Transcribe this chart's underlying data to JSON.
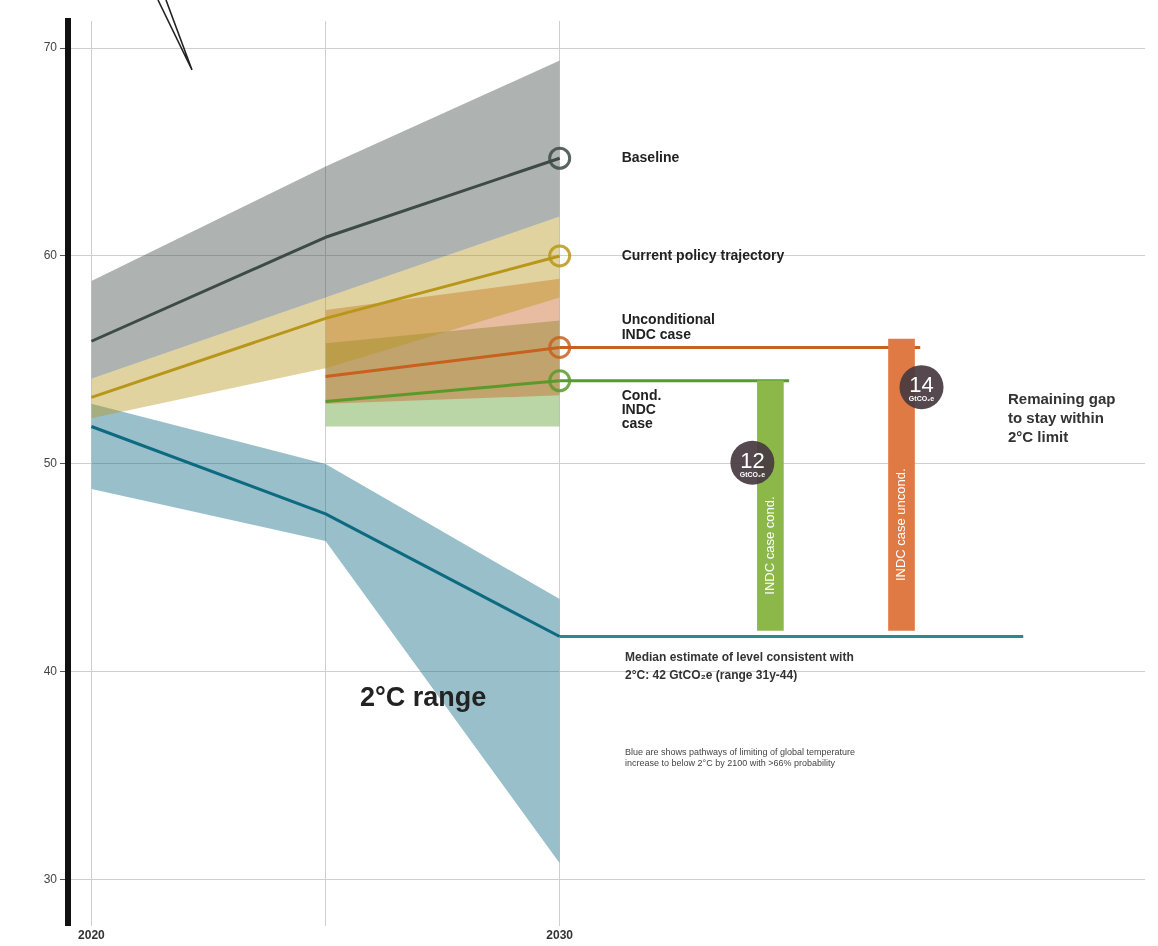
{
  "chart_data": {
    "type": "line",
    "xlim": [
      2019.5,
      2042.5
    ],
    "xticks": [
      2020,
      {
        "value": 2025,
        "label": null
      },
      2030
    ],
    "ylim": [
      27.8,
      71.3
    ],
    "yticks": [
      30,
      40,
      50,
      60,
      70
    ],
    "grid": true,
    "legend": false,
    "series": [
      {
        "name": "Baseline",
        "color": "#3d4a45",
        "x": [
          2020,
          2025,
          2030
        ],
        "values": [
          55.9,
          60.9,
          64.7
        ],
        "lower": [
          54.1,
          58.0,
          61.9
        ],
        "upper": [
          58.8,
          64.3,
          69.4
        ]
      },
      {
        "name": "Current policy trajectory",
        "color": "#b8961a",
        "x": [
          2020,
          2025,
          2030
        ],
        "values": [
          53.2,
          57.0,
          60.0
        ],
        "lower": [
          52.2,
          54.6,
          58.0
        ],
        "upper": [
          54.1,
          58.0,
          61.9
        ]
      },
      {
        "name": "Unconditional INDC case",
        "color": "#c8601e",
        "x": [
          2025,
          2030
        ],
        "values": [
          54.2,
          55.6
        ],
        "lower": [
          52.9,
          53.3
        ],
        "upper": [
          57.4,
          58.9
        ]
      },
      {
        "name": "Cond. INDC case",
        "color": "#5a9a2a",
        "x": [
          2025,
          2030
        ],
        "values": [
          53.0,
          54.0
        ],
        "lower": [
          51.8,
          51.8
        ],
        "upper": [
          55.8,
          56.9
        ]
      },
      {
        "color": "#0d6a80",
        "x": [
          2020,
          2025,
          2030
        ],
        "values": [
          51.8,
          47.6,
          41.7
        ],
        "lower": [
          48.8,
          46.3,
          30.8
        ],
        "upper": [
          52.9,
          50.0,
          43.5
        ]
      },
      {
        "color": "#c8601e",
        "x": [
          2030,
          2037.7
        ],
        "values": [
          55.6,
          55.6
        ]
      },
      {
        "color": "#5a9a2a",
        "x": [
          2030,
          2034.9
        ],
        "values": [
          54.0,
          54.0
        ]
      },
      {
        "color": "#2a8a90",
        "x": [
          2030,
          2039.9
        ],
        "values": [
          41.7,
          41.7
        ]
      },
      {
        "type": "bar",
        "x": [
          2034.5,
          2037.3
        ],
        "base": [
          42,
          42
        ],
        "values": [
          12,
          14
        ],
        "colors": [
          "#8cb84a",
          "#e07a45"
        ],
        "value_labels": [
          "12 GtCO₂e",
          "14 GtCO₂e"
        ]
      }
    ],
    "annotations": [
      "2°C range",
      "INDC case cond.",
      "INDC case uncond.",
      "Remaining gap to stay within 2°C limit",
      "Median estimate of level consistent with 2°C: 42 GtCO₂e (range 31y-44)",
      "Blue are shows pathways of limiting of global temperature increase to below 2°C by 2100 with >66% probability"
    ]
  }
}
